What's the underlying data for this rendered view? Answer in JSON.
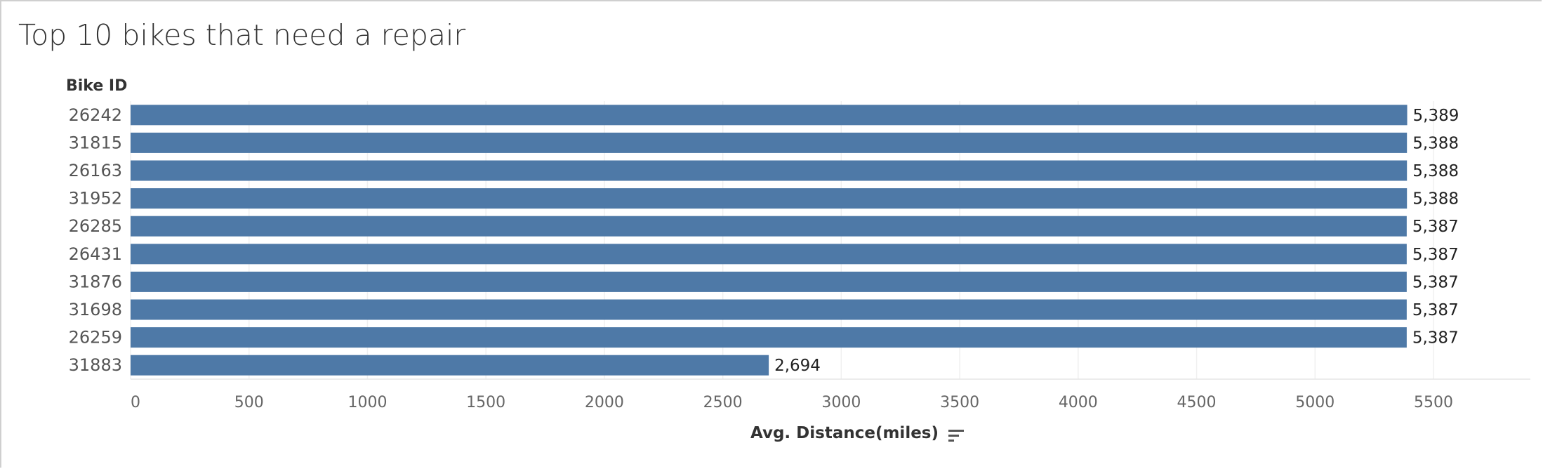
{
  "chart_data": {
    "type": "bar",
    "orientation": "horizontal",
    "title": "Top 10 bikes that need a repair",
    "ylabel": "Bike ID",
    "xlabel": "Avg. Distance(miles)",
    "categories": [
      "26242",
      "31815",
      "26163",
      "31952",
      "26285",
      "26431",
      "31876",
      "31698",
      "26259",
      "31883"
    ],
    "values": [
      5389,
      5388,
      5388,
      5388,
      5387,
      5387,
      5387,
      5387,
      5387,
      2694
    ],
    "data_labels": [
      "5,389",
      "5,388",
      "5,388",
      "5,388",
      "5,387",
      "5,387",
      "5,387",
      "5,387",
      "5,387",
      "2,694"
    ],
    "xticks": [
      "0",
      "500",
      "1000",
      "1500",
      "2000",
      "2500",
      "3000",
      "3500",
      "4000",
      "4500",
      "5000",
      "5500"
    ],
    "xlim": [
      0,
      5900
    ],
    "bar_color": "#4e79a7",
    "grid": true
  },
  "sort_icon": "sort-descending-icon"
}
